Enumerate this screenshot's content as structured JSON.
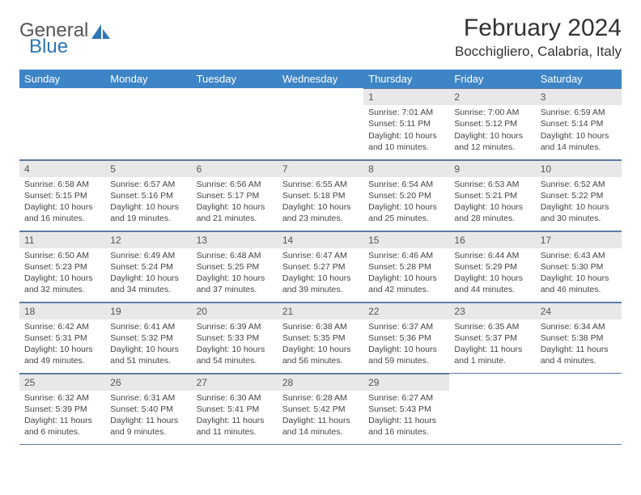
{
  "logo": {
    "text1": "General",
    "text2": "Blue"
  },
  "title": "February 2024",
  "location": "Bocchigliero, Calabria, Italy",
  "colors": {
    "header_bg": "#3d85c6",
    "header_fg": "#ffffff",
    "daynum_bg": "#e8e8e8",
    "rule": "#5b7ca3",
    "logo_accent": "#2e75b6"
  },
  "day_headers": [
    "Sunday",
    "Monday",
    "Tuesday",
    "Wednesday",
    "Thursday",
    "Friday",
    "Saturday"
  ],
  "weeks": [
    [
      {
        "blank": true
      },
      {
        "blank": true
      },
      {
        "blank": true
      },
      {
        "blank": true
      },
      {
        "day": 1,
        "sunrise": "7:01 AM",
        "sunset": "5:11 PM",
        "daylight": "10 hours and 10 minutes."
      },
      {
        "day": 2,
        "sunrise": "7:00 AM",
        "sunset": "5:12 PM",
        "daylight": "10 hours and 12 minutes."
      },
      {
        "day": 3,
        "sunrise": "6:59 AM",
        "sunset": "5:14 PM",
        "daylight": "10 hours and 14 minutes."
      }
    ],
    [
      {
        "day": 4,
        "sunrise": "6:58 AM",
        "sunset": "5:15 PM",
        "daylight": "10 hours and 16 minutes."
      },
      {
        "day": 5,
        "sunrise": "6:57 AM",
        "sunset": "5:16 PM",
        "daylight": "10 hours and 19 minutes."
      },
      {
        "day": 6,
        "sunrise": "6:56 AM",
        "sunset": "5:17 PM",
        "daylight": "10 hours and 21 minutes."
      },
      {
        "day": 7,
        "sunrise": "6:55 AM",
        "sunset": "5:18 PM",
        "daylight": "10 hours and 23 minutes."
      },
      {
        "day": 8,
        "sunrise": "6:54 AM",
        "sunset": "5:20 PM",
        "daylight": "10 hours and 25 minutes."
      },
      {
        "day": 9,
        "sunrise": "6:53 AM",
        "sunset": "5:21 PM",
        "daylight": "10 hours and 28 minutes."
      },
      {
        "day": 10,
        "sunrise": "6:52 AM",
        "sunset": "5:22 PM",
        "daylight": "10 hours and 30 minutes."
      }
    ],
    [
      {
        "day": 11,
        "sunrise": "6:50 AM",
        "sunset": "5:23 PM",
        "daylight": "10 hours and 32 minutes."
      },
      {
        "day": 12,
        "sunrise": "6:49 AM",
        "sunset": "5:24 PM",
        "daylight": "10 hours and 34 minutes."
      },
      {
        "day": 13,
        "sunrise": "6:48 AM",
        "sunset": "5:25 PM",
        "daylight": "10 hours and 37 minutes."
      },
      {
        "day": 14,
        "sunrise": "6:47 AM",
        "sunset": "5:27 PM",
        "daylight": "10 hours and 39 minutes."
      },
      {
        "day": 15,
        "sunrise": "6:46 AM",
        "sunset": "5:28 PM",
        "daylight": "10 hours and 42 minutes."
      },
      {
        "day": 16,
        "sunrise": "6:44 AM",
        "sunset": "5:29 PM",
        "daylight": "10 hours and 44 minutes."
      },
      {
        "day": 17,
        "sunrise": "6:43 AM",
        "sunset": "5:30 PM",
        "daylight": "10 hours and 46 minutes."
      }
    ],
    [
      {
        "day": 18,
        "sunrise": "6:42 AM",
        "sunset": "5:31 PM",
        "daylight": "10 hours and 49 minutes."
      },
      {
        "day": 19,
        "sunrise": "6:41 AM",
        "sunset": "5:32 PM",
        "daylight": "10 hours and 51 minutes."
      },
      {
        "day": 20,
        "sunrise": "6:39 AM",
        "sunset": "5:33 PM",
        "daylight": "10 hours and 54 minutes."
      },
      {
        "day": 21,
        "sunrise": "6:38 AM",
        "sunset": "5:35 PM",
        "daylight": "10 hours and 56 minutes."
      },
      {
        "day": 22,
        "sunrise": "6:37 AM",
        "sunset": "5:36 PM",
        "daylight": "10 hours and 59 minutes."
      },
      {
        "day": 23,
        "sunrise": "6:35 AM",
        "sunset": "5:37 PM",
        "daylight": "11 hours and 1 minute."
      },
      {
        "day": 24,
        "sunrise": "6:34 AM",
        "sunset": "5:38 PM",
        "daylight": "11 hours and 4 minutes."
      }
    ],
    [
      {
        "day": 25,
        "sunrise": "6:32 AM",
        "sunset": "5:39 PM",
        "daylight": "11 hours and 6 minutes."
      },
      {
        "day": 26,
        "sunrise": "6:31 AM",
        "sunset": "5:40 PM",
        "daylight": "11 hours and 9 minutes."
      },
      {
        "day": 27,
        "sunrise": "6:30 AM",
        "sunset": "5:41 PM",
        "daylight": "11 hours and 11 minutes."
      },
      {
        "day": 28,
        "sunrise": "6:28 AM",
        "sunset": "5:42 PM",
        "daylight": "11 hours and 14 minutes."
      },
      {
        "day": 29,
        "sunrise": "6:27 AM",
        "sunset": "5:43 PM",
        "daylight": "11 hours and 16 minutes."
      },
      {
        "blank": true
      },
      {
        "blank": true
      }
    ]
  ],
  "labels": {
    "sunrise": "Sunrise: ",
    "sunset": "Sunset: ",
    "daylight": "Daylight: "
  }
}
